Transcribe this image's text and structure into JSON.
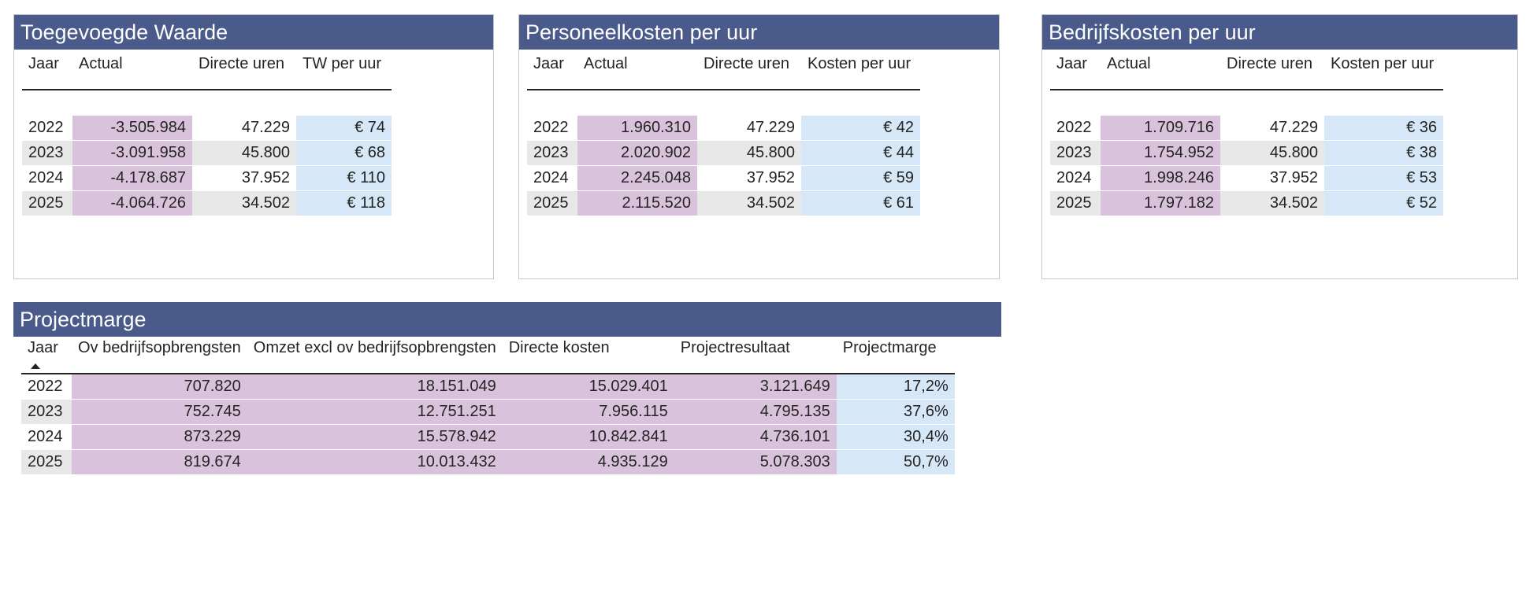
{
  "tables": [
    {
      "title": "Toegevoegde Waarde",
      "headers": [
        "Jaar",
        "Actual",
        "Directe uren",
        "TW per uur"
      ],
      "rows": [
        [
          "2022",
          "-3.505.984",
          "47.229",
          "€ 74"
        ],
        [
          "2023",
          "-3.091.958",
          "45.800",
          "€ 68"
        ],
        [
          "2024",
          "-4.178.687",
          "37.952",
          "€ 110"
        ],
        [
          "2025",
          "-4.064.726",
          "34.502",
          "€ 118"
        ]
      ]
    },
    {
      "title": "Personeelkosten per uur",
      "headers": [
        "Jaar",
        "Actual",
        "Directe uren",
        "Kosten per uur"
      ],
      "rows": [
        [
          "2022",
          "1.960.310",
          "47.229",
          "€ 42"
        ],
        [
          "2023",
          "2.020.902",
          "45.800",
          "€ 44"
        ],
        [
          "2024",
          "2.245.048",
          "37.952",
          "€ 59"
        ],
        [
          "2025",
          "2.115.520",
          "34.502",
          "€ 61"
        ]
      ]
    },
    {
      "title": "Bedrijfskosten per uur",
      "headers": [
        "Jaar",
        "Actual",
        "Directe uren",
        "Kosten per uur"
      ],
      "rows": [
        [
          "2022",
          "1.709.716",
          "47.229",
          "€ 36"
        ],
        [
          "2023",
          "1.754.952",
          "45.800",
          "€ 38"
        ],
        [
          "2024",
          "1.998.246",
          "37.952",
          "€ 53"
        ],
        [
          "2025",
          "1.797.182",
          "34.502",
          "€ 52"
        ]
      ]
    }
  ],
  "projectmarge": {
    "title": "Projectmarge",
    "headers": [
      "Jaar",
      "Ov bedrijfsopbrengsten",
      "Omzet excl ov bedrijfsopbrengsten",
      "Directe kosten",
      "Projectresultaat",
      "Projectmarge"
    ],
    "rows": [
      [
        "2022",
        "707.820",
        "18.151.049",
        "15.029.401",
        "3.121.649",
        "17,2%"
      ],
      [
        "2023",
        "752.745",
        "12.751.251",
        "7.956.115",
        "4.795.135",
        "37,6%"
      ],
      [
        "2024",
        "873.229",
        "15.578.942",
        "10.842.841",
        "4.736.101",
        "30,4%"
      ],
      [
        "2025",
        "819.674",
        "10.013.432",
        "4.935.129",
        "5.078.303",
        "50,7%"
      ]
    ]
  },
  "colors": {
    "title_bar": "#4a5a8a",
    "actual_fill": "#d9c3dc",
    "metric_fill": "#d6e7f7",
    "alt_row": "#e8e8e8"
  }
}
